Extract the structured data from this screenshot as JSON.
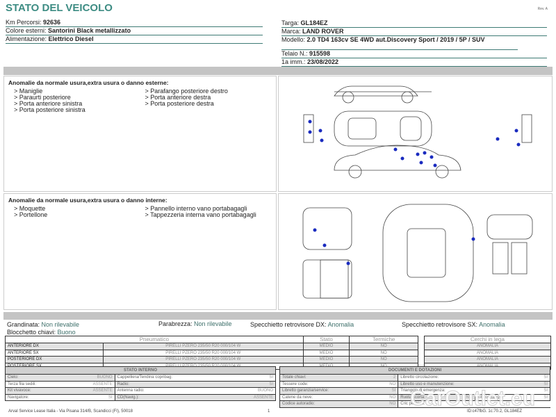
{
  "header": {
    "title": "STATO DEL VEICOLO",
    "rev": "Rev. A"
  },
  "left_info": [
    {
      "label": "Km Percorsi: ",
      "value": "92636"
    },
    {
      "label": "Colore esterni: ",
      "value": "Santorini Black metallizzato"
    },
    {
      "label": "Alimentazione: ",
      "value": "Elettrico Diesel"
    }
  ],
  "right_info": {
    "targa": {
      "label": "Targa: ",
      "value": "GL184EZ"
    },
    "marca": {
      "label": "Marca: ",
      "value": "LAND ROVER"
    },
    "modello": {
      "label": "Modello: ",
      "value": "2.0 TD4 163cv SE 4WD aut.Discovery Sport / 2019 / 5P / SUV"
    },
    "telaio": {
      "label": "Telaio N.: ",
      "value": "915598"
    },
    "imm": {
      "label": "1a imm.: ",
      "value": "23/08/2022"
    }
  },
  "exterior": {
    "title": "Anomalie da normale usura,extra usura o danno esterne:",
    "col1": [
      "> Maniglie",
      "> Paraurti posteriore",
      "> Porta anteriore sinistra",
      "> Porta posteriore sinistra"
    ],
    "col2": [
      "> Parafango posteriore destro",
      "> Porta anteriore destra",
      "> Porta posteriore destra"
    ]
  },
  "interior": {
    "title": "Anomalie da normale usura,extra usura o danno interne:",
    "col1": [
      "> Moquette",
      "> Portellone"
    ],
    "col2": [
      "> Pannello interno vano portabagagli",
      "> Tappezzeria interna vano portabagagli"
    ]
  },
  "checks": {
    "grandinata": {
      "label": "Grandinata: ",
      "value": "Non rilevabile"
    },
    "parabrezza": {
      "label": "Parabrezza: ",
      "value": "Non rilevabile"
    },
    "spec_dx": {
      "label": "Specchietto retrovisore DX: ",
      "value": "Anomalia"
    },
    "spec_sx": {
      "label": "Specchietto retrovisore SX: ",
      "value": "Anomalia"
    },
    "blocchetto": {
      "label": "Blocchetto chiavi: ",
      "value": "Buono"
    }
  },
  "tires": {
    "headers": [
      "Pneumatico",
      "Stato",
      "Termiche",
      "Cerchi in lega"
    ],
    "rows": [
      {
        "pos": "ANTERIORE DX",
        "tire": "PIRELLI PZERO 235/50 R20 000/104 W",
        "stato": "MEDIO",
        "termiche": "NO",
        "cerchi": "ANOMALIA"
      },
      {
        "pos": "ANTERIORE SX",
        "tire": "PIRELLI PZERO 235/50 R20 000/104 W",
        "stato": "MEDIO",
        "termiche": "NO",
        "cerchi": "ANOMALIA"
      },
      {
        "pos": "POSTERIORE DX",
        "tire": "PIRELLI PZERO 235/50 R20 000/104 W",
        "stato": "MEDIO",
        "termiche": "NO",
        "cerchi": "ANOMALIA"
      },
      {
        "pos": "POSTERIORE SX",
        "tire": "PIRELLI PZERO 235/50 R20 000/104 W",
        "stato": "MEDIO",
        "termiche": "NO",
        "cerchi": "ANOMALIA"
      }
    ]
  },
  "stato_interno": {
    "title": "STATO INTERNO",
    "rows": [
      [
        "Cielo:",
        "BUONO",
        "Cappelliera/Tendina copribag:",
        "SI"
      ],
      [
        "Terza fila sedili:",
        "ASSENTE",
        "Radio:",
        "SI"
      ],
      [
        "Kit vivavoce:",
        "ASSENTE",
        "Antenna radio:",
        "BUONO"
      ],
      [
        "Navigatore:",
        "SI",
        "CD(Navig.):",
        "ASSENTE"
      ]
    ]
  },
  "documenti": {
    "title": "DOCUMENTI E DOTAZIONI",
    "rows": [
      [
        "Totale chiavi:",
        "2",
        "Libretto circolazione:",
        "SI"
      ],
      [
        "Tessere code:",
        "NO",
        "Libretto uso e manutenzione:",
        "SI"
      ],
      [
        "Libretto garanzia/service:",
        "SI",
        "Triangolo di emergenza:",
        "SI"
      ],
      [
        "Catene da neve:",
        "NO",
        "Ruota scorta:",
        "NO",
        "Kit gonfiaggio:",
        "SI"
      ],
      [
        "Codice autoradio:",
        "NO",
        "Cric pedtrico:",
        ""
      ]
    ]
  },
  "footer": {
    "company": "Arval Service Lease Italia - Via Pisana 314/B, Scandicci (FI), 50018",
    "page": "1",
    "id": "ID:c47fbG. 1c:70.2, GL184EZ",
    "watermark": "CarOutlet.eu"
  }
}
